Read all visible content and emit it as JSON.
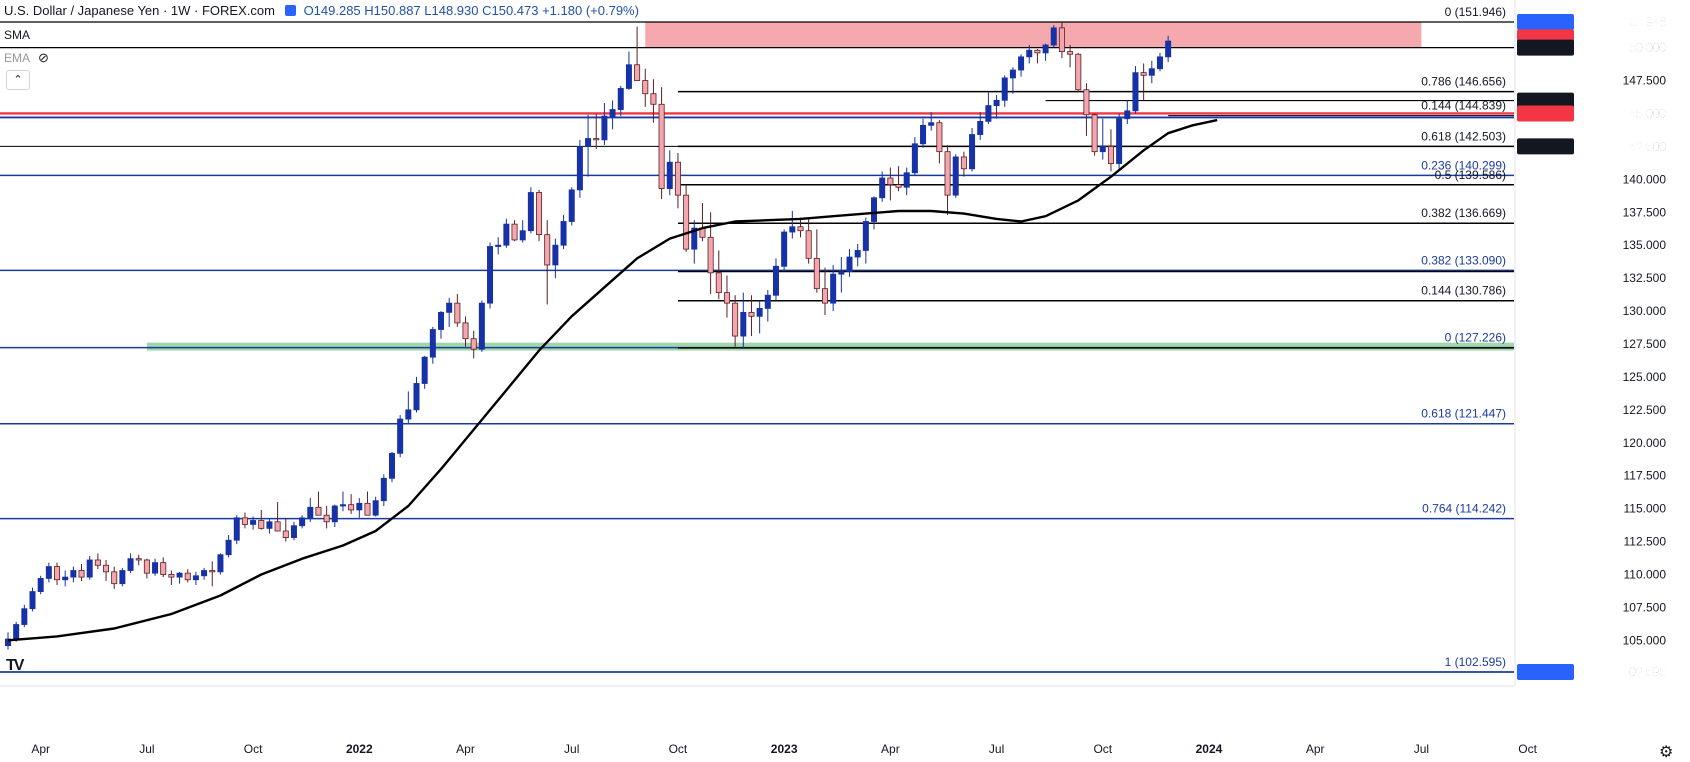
{
  "header": {
    "title": "U.S. Dollar / Japanese Yen · 1W · FOREX.com",
    "ohlc": "O149.285 H150.887 L148.930 C150.473 +1.180 (+0.79%)"
  },
  "indicators": {
    "sma_label": "SMA",
    "ema_label": "EMA",
    "collapse_icon": "chevron-up-icon",
    "eye_icon": "eye-off-icon"
  },
  "colors": {
    "up": "#1632a6",
    "down_fill": "#f4a6ae",
    "down_stroke": "#5a1f24",
    "fib": "#000000",
    "level_blue": "#1a3b9e",
    "red_zone": "#f28b93",
    "green_zone": "#7fc98f",
    "sma": "#000000",
    "badge_blue": "#2962ff",
    "badge_red": "#f23645",
    "badge_black": "#131722"
  },
  "chart_data": {
    "type": "candlestick",
    "title": "U.S. Dollar / Japanese Yen · 1W · FOREX.com",
    "ylim": [
      102.0,
      152.6
    ],
    "y_ticks": [
      102.595,
      105.0,
      107.5,
      110.0,
      112.5,
      115.0,
      117.5,
      120.0,
      122.5,
      125.0,
      127.5,
      130.0,
      132.5,
      135.0,
      137.5,
      140.0,
      142.5,
      145.0,
      147.5,
      150.0,
      151.946
    ],
    "x_ticks": [
      {
        "label": "Apr",
        "week": 4
      },
      {
        "label": "Jul",
        "week": 17
      },
      {
        "label": "Oct",
        "week": 30
      },
      {
        "label": "2022",
        "week": 43
      },
      {
        "label": "Apr",
        "week": 56
      },
      {
        "label": "Jul",
        "week": 69
      },
      {
        "label": "Oct",
        "week": 82
      },
      {
        "label": "2023",
        "week": 95
      },
      {
        "label": "Apr",
        "week": 108
      },
      {
        "label": "Jul",
        "week": 121
      },
      {
        "label": "Oct",
        "week": 134
      },
      {
        "label": "2024",
        "week": 147
      },
      {
        "label": "Apr",
        "week": 160
      },
      {
        "label": "Jul",
        "week": 173
      },
      {
        "label": "Oct",
        "week": 186
      }
    ],
    "x_range": [
      -1,
      192
    ],
    "ohlc": [
      [
        104.6,
        105.6,
        104.3,
        105.1
      ],
      [
        105.1,
        106.4,
        104.9,
        106.2
      ],
      [
        106.2,
        107.7,
        106.0,
        107.4
      ],
      [
        107.4,
        109.0,
        107.2,
        108.7
      ],
      [
        108.7,
        109.9,
        108.5,
        109.7
      ],
      [
        109.7,
        110.9,
        109.4,
        110.6
      ],
      [
        110.6,
        110.9,
        109.2,
        109.6
      ],
      [
        109.6,
        110.3,
        109.1,
        109.8
      ],
      [
        109.8,
        110.6,
        109.4,
        110.3
      ],
      [
        110.3,
        110.8,
        109.5,
        109.8
      ],
      [
        109.8,
        111.4,
        109.6,
        111.1
      ],
      [
        111.1,
        111.6,
        110.4,
        110.7
      ],
      [
        110.7,
        111.1,
        109.5,
        110.2
      ],
      [
        110.2,
        110.6,
        108.9,
        109.3
      ],
      [
        109.3,
        110.5,
        109.1,
        110.3
      ],
      [
        110.3,
        111.6,
        110.1,
        111.2
      ],
      [
        111.2,
        111.5,
        110.7,
        111.1
      ],
      [
        111.1,
        111.2,
        109.7,
        110.1
      ],
      [
        110.1,
        111.2,
        109.9,
        110.9
      ],
      [
        110.9,
        111.3,
        109.8,
        110.0
      ],
      [
        110.0,
        110.3,
        109.2,
        109.8
      ],
      [
        109.8,
        110.2,
        109.3,
        110.1
      ],
      [
        110.1,
        110.4,
        109.4,
        109.6
      ],
      [
        109.6,
        110.2,
        109.2,
        109.9
      ],
      [
        109.9,
        110.5,
        109.6,
        110.3
      ],
      [
        110.3,
        111.0,
        109.1,
        110.2
      ],
      [
        110.2,
        111.6,
        110.0,
        111.5
      ],
      [
        111.5,
        113.0,
        111.3,
        112.6
      ],
      [
        112.6,
        114.5,
        112.3,
        114.3
      ],
      [
        114.3,
        114.7,
        113.5,
        113.8
      ],
      [
        113.8,
        114.4,
        113.4,
        114.1
      ],
      [
        114.1,
        114.9,
        113.4,
        113.5
      ],
      [
        113.5,
        114.2,
        113.1,
        114.0
      ],
      [
        114.0,
        115.5,
        113.5,
        113.3
      ],
      [
        113.3,
        114.3,
        112.5,
        112.8
      ],
      [
        112.8,
        114.0,
        112.6,
        113.7
      ],
      [
        113.7,
        114.5,
        113.5,
        114.3
      ],
      [
        114.3,
        115.8,
        114.0,
        115.1
      ],
      [
        115.1,
        116.3,
        114.8,
        114.5
      ],
      [
        114.5,
        115.2,
        113.5,
        114.0
      ],
      [
        114.0,
        115.3,
        113.6,
        115.2
      ],
      [
        115.2,
        116.3,
        114.8,
        115.3
      ],
      [
        115.3,
        116.1,
        114.6,
        114.9
      ],
      [
        114.9,
        115.8,
        114.3,
        115.4
      ],
      [
        115.4,
        116.3,
        114.5,
        114.5
      ],
      [
        114.5,
        115.9,
        114.4,
        115.6
      ],
      [
        115.6,
        117.6,
        115.2,
        117.3
      ],
      [
        117.3,
        119.3,
        117.0,
        119.2
      ],
      [
        119.2,
        122.1,
        118.9,
        121.8
      ],
      [
        121.8,
        123.9,
        121.5,
        122.5
      ],
      [
        122.5,
        125.0,
        122.3,
        124.5
      ],
      [
        124.5,
        126.6,
        124.1,
        126.5
      ],
      [
        126.5,
        128.8,
        126.0,
        128.6
      ],
      [
        128.6,
        130.0,
        127.9,
        129.9
      ],
      [
        129.9,
        131.0,
        128.8,
        130.6
      ],
      [
        130.6,
        131.3,
        128.8,
        129.1
      ],
      [
        129.1,
        129.6,
        127.3,
        127.9
      ],
      [
        127.9,
        128.5,
        126.4,
        127.1
      ],
      [
        127.1,
        130.8,
        126.9,
        130.6
      ],
      [
        130.6,
        135.2,
        130.2,
        134.9
      ],
      [
        134.9,
        135.6,
        134.3,
        135.0
      ],
      [
        135.0,
        137.0,
        134.8,
        136.6
      ],
      [
        136.6,
        136.9,
        135.3,
        135.4
      ],
      [
        135.4,
        136.9,
        135.2,
        136.1
      ],
      [
        136.1,
        139.4,
        135.9,
        139.0
      ],
      [
        139.0,
        139.2,
        135.3,
        135.8
      ],
      [
        135.8,
        136.9,
        130.5,
        133.5
      ],
      [
        133.5,
        135.5,
        132.5,
        135.0
      ],
      [
        135.0,
        137.3,
        134.7,
        136.8
      ],
      [
        136.8,
        139.4,
        136.5,
        139.2
      ],
      [
        139.2,
        143.0,
        138.6,
        142.5
      ],
      [
        142.5,
        144.9,
        140.2,
        143.1
      ],
      [
        143.1,
        145.0,
        142.3,
        143.0
      ],
      [
        143.0,
        145.8,
        142.6,
        144.8
      ],
      [
        144.8,
        146.0,
        143.8,
        145.3
      ],
      [
        145.3,
        147.1,
        144.8,
        146.9
      ],
      [
        146.9,
        149.7,
        146.8,
        148.7
      ],
      [
        148.7,
        151.6,
        148.0,
        147.5
      ],
      [
        147.5,
        148.4,
        145.5,
        146.5
      ],
      [
        146.5,
        147.6,
        144.3,
        145.7
      ],
      [
        145.7,
        147.0,
        138.5,
        139.3
      ],
      [
        139.3,
        142.2,
        138.8,
        141.3
      ],
      [
        141.3,
        142.0,
        137.8,
        138.8
      ],
      [
        138.8,
        139.6,
        134.5,
        134.7
      ],
      [
        134.7,
        136.9,
        133.6,
        136.3
      ],
      [
        136.3,
        138.2,
        135.3,
        135.6
      ],
      [
        135.6,
        137.5,
        131.3,
        132.9
      ],
      [
        132.9,
        134.6,
        130.9,
        131.4
      ],
      [
        131.4,
        132.7,
        129.5,
        130.6
      ],
      [
        130.6,
        131.2,
        127.3,
        128.1
      ],
      [
        128.1,
        131.4,
        127.2,
        129.9
      ],
      [
        129.9,
        131.2,
        128.1,
        129.6
      ],
      [
        129.6,
        130.8,
        128.3,
        130.2
      ],
      [
        130.2,
        131.6,
        129.2,
        131.2
      ],
      [
        131.2,
        134.0,
        130.8,
        133.4
      ],
      [
        133.4,
        136.2,
        133.0,
        136.0
      ],
      [
        136.0,
        137.6,
        135.5,
        136.4
      ],
      [
        136.4,
        137.1,
        135.6,
        136.1
      ],
      [
        136.1,
        137.1,
        133.6,
        134.0
      ],
      [
        134.0,
        136.2,
        131.4,
        131.7
      ],
      [
        131.7,
        133.3,
        129.7,
        130.6
      ],
      [
        130.6,
        133.5,
        130.0,
        132.8
      ],
      [
        132.8,
        134.1,
        131.4,
        133.0
      ],
      [
        133.0,
        134.7,
        132.6,
        134.1
      ],
      [
        134.1,
        135.1,
        133.4,
        134.6
      ],
      [
        134.6,
        137.1,
        133.6,
        136.8
      ],
      [
        136.8,
        138.7,
        136.2,
        138.6
      ],
      [
        138.6,
        140.6,
        138.3,
        140.1
      ],
      [
        140.1,
        140.9,
        138.4,
        139.6
      ],
      [
        139.6,
        141.0,
        139.1,
        139.4
      ],
      [
        139.4,
        140.9,
        138.8,
        140.5
      ],
      [
        140.5,
        143.2,
        140.3,
        142.7
      ],
      [
        142.7,
        144.6,
        142.4,
        144.1
      ],
      [
        144.1,
        145.1,
        143.7,
        144.3
      ],
      [
        144.3,
        144.5,
        141.2,
        142.1
      ],
      [
        142.1,
        142.6,
        137.3,
        138.8
      ],
      [
        138.8,
        141.9,
        138.6,
        141.7
      ],
      [
        141.7,
        142.1,
        140.2,
        140.8
      ],
      [
        140.8,
        143.9,
        140.6,
        143.4
      ],
      [
        143.4,
        145.1,
        143.0,
        144.4
      ],
      [
        144.4,
        146.6,
        144.2,
        145.6
      ],
      [
        145.6,
        146.4,
        144.6,
        146.0
      ],
      [
        146.0,
        147.9,
        145.5,
        147.7
      ],
      [
        147.7,
        148.5,
        146.5,
        148.3
      ],
      [
        148.3,
        149.5,
        147.8,
        149.3
      ],
      [
        149.3,
        150.2,
        148.8,
        149.8
      ],
      [
        149.8,
        149.9,
        148.8,
        149.6
      ],
      [
        149.6,
        150.3,
        149.0,
        150.2
      ],
      [
        150.2,
        151.7,
        150.0,
        151.5
      ],
      [
        151.5,
        151.9,
        149.2,
        149.7
      ],
      [
        149.7,
        150.2,
        148.5,
        149.5
      ],
      [
        149.5,
        149.6,
        146.6,
        146.8
      ],
      [
        146.8,
        147.3,
        143.3,
        144.9
      ],
      [
        144.9,
        145.0,
        141.8,
        142.1
      ],
      [
        142.1,
        144.6,
        141.5,
        142.5
      ],
      [
        142.5,
        143.8,
        140.6,
        141.2
      ],
      [
        141.2,
        145.0,
        140.8,
        144.6
      ],
      [
        144.6,
        146.0,
        144.2,
        145.2
      ],
      [
        145.2,
        148.6,
        145.0,
        148.1
      ],
      [
        148.1,
        148.8,
        146.0,
        147.9
      ],
      [
        147.9,
        149.0,
        147.3,
        148.4
      ],
      [
        148.4,
        149.6,
        148.2,
        149.3
      ],
      [
        149.3,
        150.9,
        148.9,
        150.5
      ]
    ],
    "sma": [
      [
        0,
        105.0
      ],
      [
        6,
        105.3
      ],
      [
        13,
        105.9
      ],
      [
        20,
        107.0
      ],
      [
        26,
        108.4
      ],
      [
        31,
        110.0
      ],
      [
        36,
        111.2
      ],
      [
        41,
        112.2
      ],
      [
        45,
        113.3
      ],
      [
        49,
        115.2
      ],
      [
        53,
        118.0
      ],
      [
        57,
        121.0
      ],
      [
        61,
        124.0
      ],
      [
        65,
        127.0
      ],
      [
        69,
        129.6
      ],
      [
        73,
        131.8
      ],
      [
        77,
        134.0
      ],
      [
        81,
        135.5
      ],
      [
        85,
        136.3
      ],
      [
        89,
        136.8
      ],
      [
        93,
        136.9
      ],
      [
        97,
        137.0
      ],
      [
        101,
        137.2
      ],
      [
        105,
        137.4
      ],
      [
        109,
        137.6
      ],
      [
        113,
        137.6
      ],
      [
        117,
        137.4
      ],
      [
        121,
        137.0
      ],
      [
        124,
        136.8
      ],
      [
        127,
        137.2
      ],
      [
        131,
        138.4
      ],
      [
        135,
        140.2
      ],
      [
        139,
        142.2
      ],
      [
        142,
        143.5
      ],
      [
        145,
        144.1
      ],
      [
        148,
        144.5
      ]
    ],
    "levels": [
      {
        "value": 151.946,
        "label": "0 (151.946)",
        "start": -1,
        "color": "fib",
        "width": 1.2
      },
      {
        "value": 150.0,
        "label": "",
        "start": -1,
        "color": "fib",
        "width": 1.2
      },
      {
        "value": 146.656,
        "label": "0.786 (146.656)",
        "start": 82,
        "color": "fib",
        "width": 1.5
      },
      {
        "value": 145.981,
        "label": "",
        "start": 127,
        "color": "fib",
        "width": 1.2
      },
      {
        "value": 144.839,
        "label": "0.144 (144.839)",
        "start": 142,
        "color": "fib",
        "width": 1
      },
      {
        "value": 145.0,
        "label": "",
        "start": -1,
        "color": "red",
        "width": 2.4
      },
      {
        "value": 144.7,
        "label": "",
        "start": -1,
        "color": "level_blue",
        "width": 1.8
      },
      {
        "value": 142.503,
        "label": "0.618 (142.503)",
        "start": 82,
        "color": "fib",
        "width": 1.5
      },
      {
        "value": 142.5,
        "label": "",
        "start": -1,
        "color": "fib",
        "width": 1
      },
      {
        "value": 140.299,
        "label": "0.236 (140.299)",
        "start": -1,
        "color": "level_blue",
        "width": 1.5
      },
      {
        "value": 139.586,
        "label": "0.5 (139.586)",
        "start": 82,
        "color": "fib",
        "width": 1.5
      },
      {
        "value": 136.669,
        "label": "0.382 (136.669)",
        "start": 82,
        "color": "fib",
        "width": 1.5
      },
      {
        "value": 133.09,
        "label": "0.382 (133.090)",
        "start": -1,
        "color": "level_blue",
        "width": 1.5
      },
      {
        "value": 133.0,
        "label": "",
        "start": 82,
        "color": "fib",
        "width": 1.5
      },
      {
        "value": 130.786,
        "label": "0.144 (130.786)",
        "start": 82,
        "color": "fib",
        "width": 1.5
      },
      {
        "value": 127.226,
        "label": "0 (127.226)",
        "start": -1,
        "color": "level_blue",
        "width": 1.5
      },
      {
        "value": 127.2,
        "label": "",
        "start": 82,
        "color": "fib",
        "width": 1.5
      },
      {
        "value": 121.447,
        "label": "0.618 (121.447)",
        "start": -1,
        "color": "level_blue",
        "width": 1.5
      },
      {
        "value": 114.242,
        "label": "0.764 (114.242)",
        "start": -1,
        "color": "level_blue",
        "width": 1.5
      },
      {
        "value": 102.595,
        "label": "1 (102.595)",
        "start": -1,
        "color": "level_blue",
        "width": 1.8
      }
    ],
    "zones": [
      {
        "from": 150.0,
        "to": 151.946,
        "start": 78,
        "end": 173,
        "color": "red_zone"
      },
      {
        "from": 127.0,
        "to": 127.6,
        "start": 17,
        "end": 192,
        "color": "green_zone"
      }
    ],
    "price_badges": [
      {
        "value": 151.946,
        "label": "151.946",
        "color": "badge_blue"
      },
      {
        "value": 150.779,
        "label": "150.779",
        "color": "badge_red"
      },
      {
        "value": 150.0,
        "label": "150.000",
        "color": "badge_black"
      },
      {
        "value": 145.981,
        "label": "145.981",
        "color": "badge_black"
      },
      {
        "value": 145.0,
        "label": "145.000",
        "color": "badge_red"
      },
      {
        "value": 142.5,
        "label": "142.500",
        "color": "badge_black"
      },
      {
        "value": 102.595,
        "label": "102.595",
        "color": "badge_blue"
      }
    ]
  }
}
